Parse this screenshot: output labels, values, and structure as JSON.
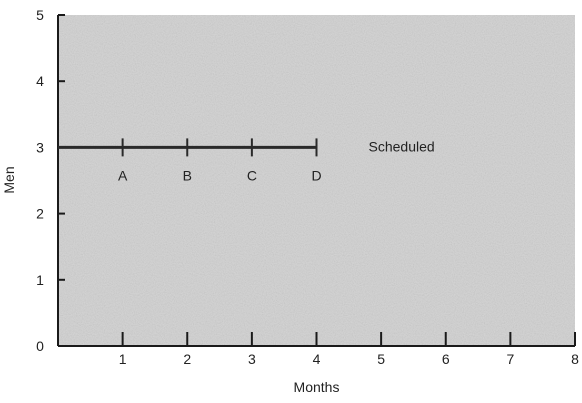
{
  "chart_data": {
    "type": "line",
    "title": "",
    "xlabel": "Months",
    "ylabel": "Men",
    "xlim": [
      0,
      8
    ],
    "ylim": [
      0,
      5
    ],
    "x_ticks": [
      1,
      2,
      3,
      4,
      5,
      6,
      7,
      8
    ],
    "y_ticks": [
      0,
      1,
      2,
      3,
      4,
      5
    ],
    "grid": false,
    "series": [
      {
        "name": "Scheduled",
        "x": [
          0,
          4
        ],
        "y": [
          3,
          3
        ],
        "markers": [
          {
            "x": 1,
            "label": "A"
          },
          {
            "x": 2,
            "label": "B"
          },
          {
            "x": 3,
            "label": "C"
          },
          {
            "x": 4,
            "label": "D"
          }
        ]
      }
    ],
    "colors": {
      "plot_background": "#d6d6d6",
      "line": "#2a2a2a",
      "axis": "#1a1a1a"
    }
  }
}
